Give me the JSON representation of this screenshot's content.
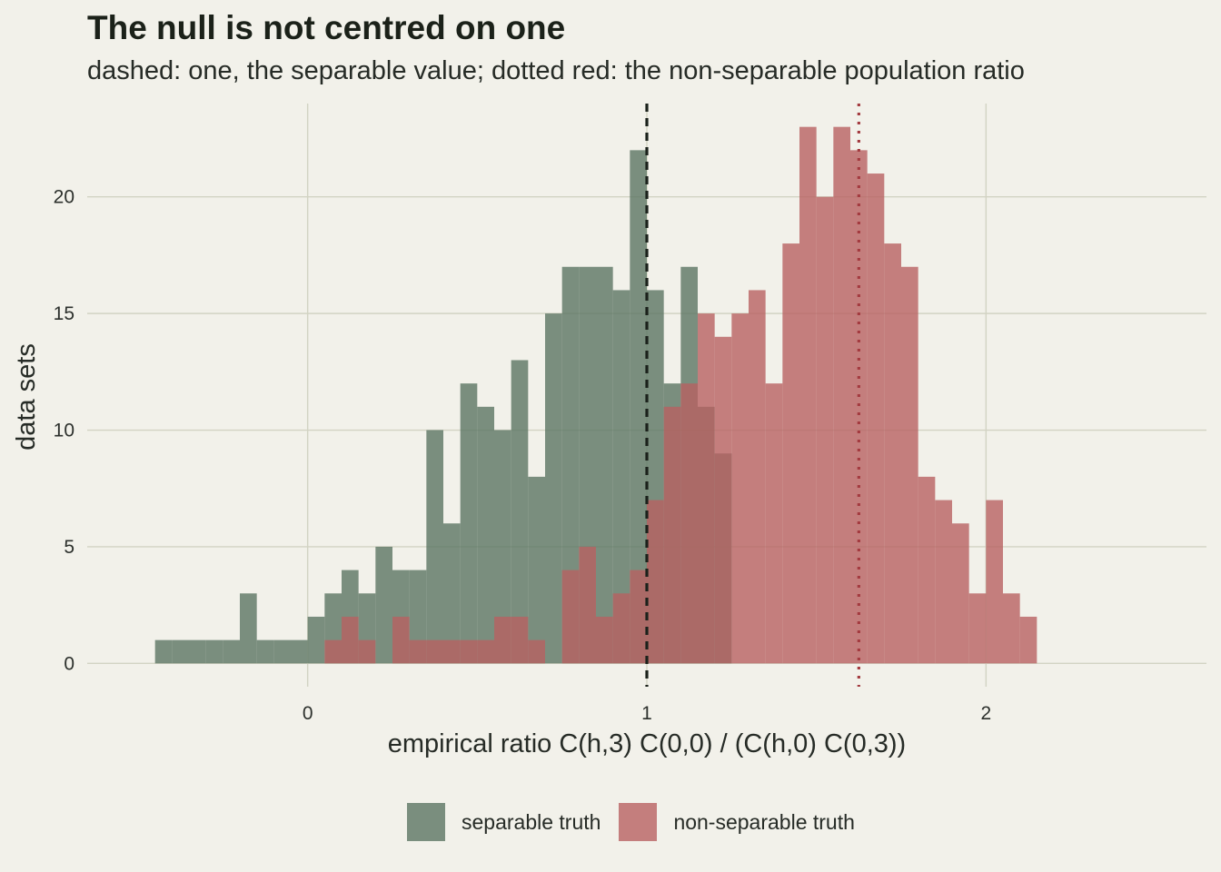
{
  "title": "The null is not centred on one",
  "subtitle": "dashed: one, the separable value; dotted red: the non-separable population ratio",
  "colors": {
    "background": "#f2f1ea",
    "grid": "#d2d3c3",
    "separable": "#5b7563",
    "non_separable": "#b86262",
    "dashed_line": "#1b211b",
    "dotted_line": "#a33a3f"
  },
  "legend": {
    "separable_label": "separable truth",
    "non_separable_label": "non-separable truth"
  },
  "chart_data": {
    "type": "histogram",
    "xlabel": "empirical ratio C(h,3) C(0,0) / (C(h,0) C(0,3))",
    "ylabel": "data sets",
    "xlim": [
      -0.65,
      2.65
    ],
    "ylim": [
      -1,
      24
    ],
    "x_ticks": [
      0,
      1,
      2
    ],
    "x_tick_labels": [
      "0",
      "1",
      "2"
    ],
    "y_ticks": [
      0,
      5,
      10,
      15,
      20
    ],
    "y_tick_labels": [
      "0",
      "5",
      "10",
      "15",
      "20"
    ],
    "bin_start": -0.45,
    "bin_width": 0.05,
    "grid": true,
    "legend_position": "bottom",
    "reference_lines": [
      {
        "x": 1.0,
        "style": "dashed",
        "color": "#1b211b"
      },
      {
        "x": 1.625,
        "style": "dotted",
        "color": "#a33a3f"
      }
    ],
    "series": [
      {
        "name": "separable truth",
        "color": "#5b7563",
        "counts": [
          1,
          1,
          1,
          1,
          1,
          3,
          1,
          1,
          1,
          2,
          3,
          4,
          3,
          5,
          4,
          4,
          10,
          6,
          12,
          11,
          10,
          13,
          8,
          15,
          17,
          17,
          17,
          16,
          22,
          16,
          12,
          17,
          11,
          9
        ]
      },
      {
        "name": "non-separable truth",
        "color": "#b86262",
        "counts": [
          0,
          0,
          0,
          0,
          0,
          0,
          0,
          0,
          0,
          0,
          1,
          2,
          1,
          0,
          2,
          1,
          1,
          1,
          1,
          1,
          2,
          2,
          1,
          0,
          4,
          5,
          2,
          3,
          4,
          7,
          11,
          12,
          15,
          14,
          15,
          16,
          12,
          18,
          23,
          20,
          23,
          22,
          21,
          18,
          17,
          8,
          7,
          6,
          3,
          7,
          3,
          2
        ]
      }
    ]
  }
}
